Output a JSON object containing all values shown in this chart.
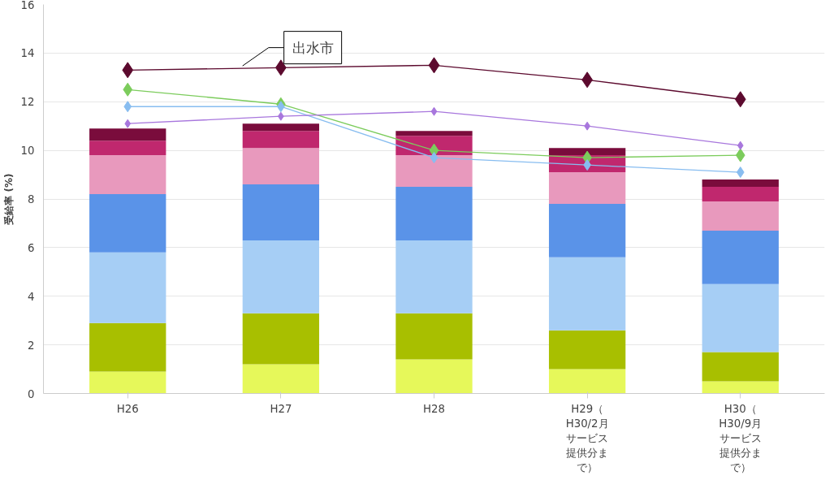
{
  "chart_data": {
    "type": "bar",
    "stacked": true,
    "ylabel": "受給率 (%)",
    "categories": [
      "H26",
      "H27",
      "H28",
      "H29（H30/2月サービス提供分まで）",
      "H30（H30/9月サービス提供分まで）"
    ],
    "series": [
      {
        "color": "#e6f85a",
        "values": [
          0.9,
          1.2,
          1.4,
          1.0,
          0.5
        ]
      },
      {
        "color": "#a8bf00",
        "values": [
          2.0,
          2.1,
          1.9,
          1.6,
          1.2
        ]
      },
      {
        "color": "#a6cef5",
        "values": [
          2.9,
          3.0,
          3.0,
          3.0,
          2.8
        ]
      },
      {
        "color": "#5a93e8",
        "values": [
          2.4,
          2.3,
          2.2,
          2.2,
          2.2
        ]
      },
      {
        "color": "#e899bd",
        "values": [
          1.6,
          1.5,
          1.3,
          1.3,
          1.2
        ]
      },
      {
        "color": "#c0286e",
        "values": [
          0.6,
          0.7,
          0.8,
          0.7,
          0.6
        ]
      },
      {
        "color": "#7a0c3c",
        "values": [
          0.5,
          0.3,
          0.2,
          0.3,
          0.3
        ]
      },
      {
        "type": "line",
        "name": "出水市",
        "color": "#5c0a2e",
        "values": [
          13.3,
          13.4,
          13.5,
          12.9,
          12.1
        ]
      },
      {
        "type": "line",
        "color": "#7ccc5c",
        "values": [
          12.5,
          11.9,
          10.0,
          9.7,
          9.8
        ]
      },
      {
        "type": "line",
        "color": "#88bdf0",
        "values": [
          11.8,
          11.8,
          9.7,
          9.4,
          9.1
        ]
      },
      {
        "type": "line",
        "color": "#a877dd",
        "values": [
          11.1,
          11.4,
          11.6,
          11.0,
          10.2
        ]
      }
    ],
    "ylim": [
      0,
      16
    ],
    "yticks": [
      0,
      2,
      4,
      6,
      8,
      10,
      12,
      14,
      16
    ],
    "grid": "y",
    "legend": false,
    "marker": "diamond",
    "line_style": "solid"
  }
}
